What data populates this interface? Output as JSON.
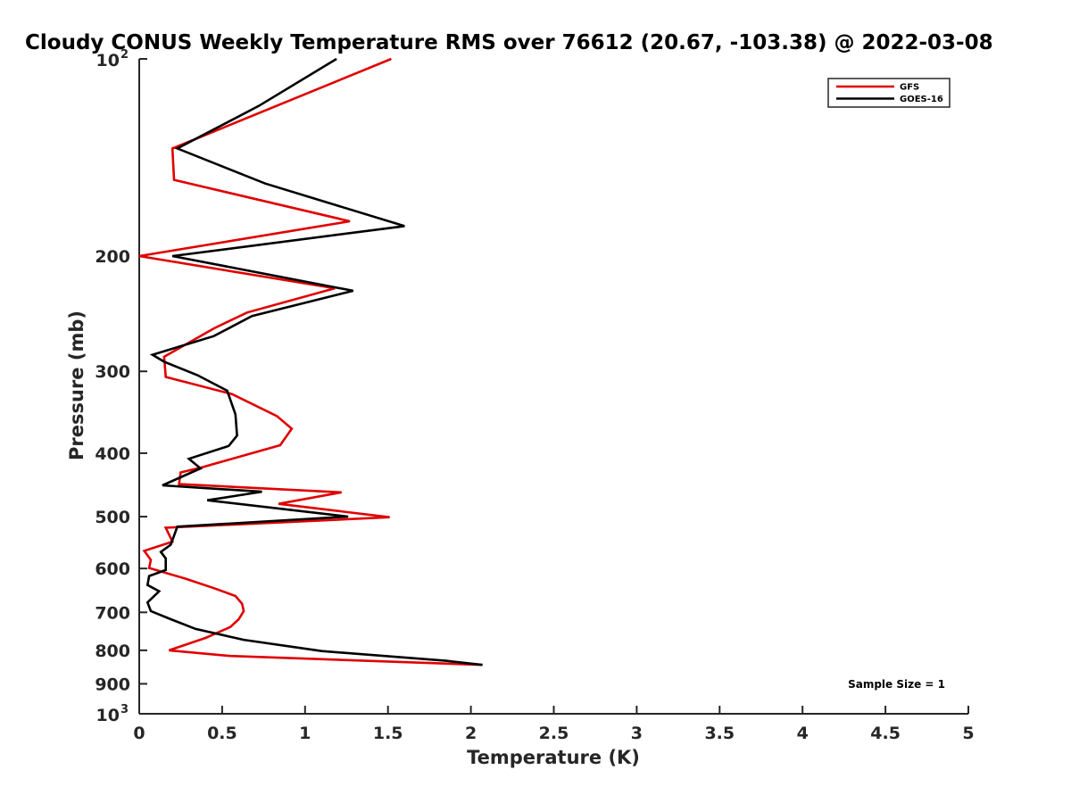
{
  "chart_data": {
    "type": "line",
    "title": "Cloudy CONUS Weekly Temperature RMS over 76612 (20.67, -103.38) @ 2022-03-08",
    "xlabel": "Temperature (K)",
    "ylabel": "Pressure (mb)",
    "xlim": [
      0,
      5
    ],
    "ylim": [
      100,
      1000
    ],
    "y_scale": "log",
    "y_reversed": true,
    "grid": false,
    "legend_position": "top-right",
    "x_ticks": [
      "0",
      "0.5",
      "1",
      "1.5",
      "2",
      "2.5",
      "3",
      "3.5",
      "4",
      "4.5",
      "5"
    ],
    "y_ticks": [
      {
        "value": 100,
        "base": "10",
        "exp": "2"
      },
      {
        "value": 200,
        "label": "200"
      },
      {
        "value": 300,
        "label": "300"
      },
      {
        "value": 400,
        "label": "400"
      },
      {
        "value": 500,
        "label": "500"
      },
      {
        "value": 600,
        "label": "600"
      },
      {
        "value": 700,
        "label": "700"
      },
      {
        "value": 800,
        "label": "800"
      },
      {
        "value": 900,
        "label": "900"
      },
      {
        "value": 1000,
        "base": "10",
        "exp": "3"
      }
    ],
    "annotation": "Sample Size = 1",
    "series": [
      {
        "name": "GFS",
        "color": "#e00000",
        "points": [
          [
            1.52,
            100
          ],
          [
            0.2,
            137
          ],
          [
            0.21,
            153
          ],
          [
            1.27,
            177
          ],
          [
            0.0,
            200
          ],
          [
            1.18,
            224
          ],
          [
            0.65,
            244
          ],
          [
            0.45,
            258
          ],
          [
            0.15,
            285
          ],
          [
            0.16,
            306
          ],
          [
            0.56,
            325
          ],
          [
            0.83,
            351
          ],
          [
            0.92,
            367
          ],
          [
            0.85,
            389
          ],
          [
            0.37,
            421
          ],
          [
            0.25,
            428
          ],
          [
            0.24,
            446
          ],
          [
            1.22,
            459
          ],
          [
            0.84,
            478
          ],
          [
            1.51,
            501
          ],
          [
            0.16,
            520
          ],
          [
            0.2,
            546
          ],
          [
            0.03,
            564
          ],
          [
            0.07,
            582
          ],
          [
            0.06,
            599
          ],
          [
            0.28,
            622
          ],
          [
            0.45,
            643
          ],
          [
            0.58,
            661
          ],
          [
            0.62,
            679
          ],
          [
            0.63,
            697
          ],
          [
            0.6,
            717
          ],
          [
            0.55,
            737
          ],
          [
            0.4,
            766
          ],
          [
            0.18,
            800
          ],
          [
            0.55,
            816
          ],
          [
            2.07,
            842
          ]
        ]
      },
      {
        "name": "GOES-16",
        "color": "#000000",
        "points": [
          [
            1.19,
            100
          ],
          [
            0.72,
            118
          ],
          [
            0.23,
            137
          ],
          [
            0.76,
            155
          ],
          [
            1.6,
            180
          ],
          [
            0.2,
            200
          ],
          [
            1.29,
            226
          ],
          [
            0.68,
            247
          ],
          [
            0.45,
            265
          ],
          [
            0.08,
            283
          ],
          [
            0.15,
            290
          ],
          [
            0.35,
            304
          ],
          [
            0.53,
            321
          ],
          [
            0.58,
            349
          ],
          [
            0.59,
            376
          ],
          [
            0.54,
            390
          ],
          [
            0.3,
            408
          ],
          [
            0.37,
            422
          ],
          [
            0.14,
            448
          ],
          [
            0.74,
            458
          ],
          [
            0.41,
            472
          ],
          [
            1.26,
            500
          ],
          [
            0.23,
            518
          ],
          [
            0.19,
            552
          ],
          [
            0.13,
            566
          ],
          [
            0.16,
            579
          ],
          [
            0.16,
            603
          ],
          [
            0.06,
            616
          ],
          [
            0.05,
            636
          ],
          [
            0.12,
            650
          ],
          [
            0.05,
            676
          ],
          [
            0.07,
            697
          ],
          [
            0.19,
            717
          ],
          [
            0.34,
            742
          ],
          [
            0.63,
            771
          ],
          [
            1.1,
            802
          ],
          [
            1.85,
            830
          ],
          [
            2.07,
            842
          ]
        ]
      }
    ]
  }
}
